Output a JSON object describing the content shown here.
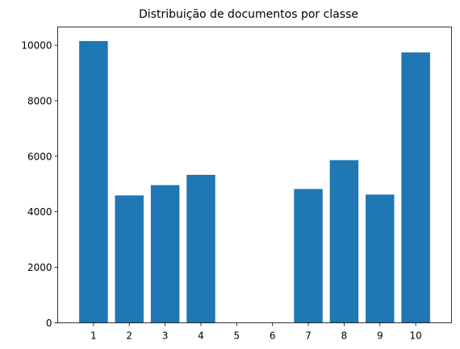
{
  "chart_data": {
    "type": "bar",
    "title": "Distribuição de documentos por classe",
    "xlabel": "",
    "ylabel": "",
    "categories": [
      "1",
      "2",
      "3",
      "4",
      "5",
      "6",
      "7",
      "8",
      "9",
      "10"
    ],
    "values": [
      10150,
      4590,
      4960,
      5330,
      0,
      0,
      4820,
      5860,
      4620,
      9740
    ],
    "ylim": [
      0,
      10656
    ],
    "yticks": [
      0,
      2000,
      4000,
      6000,
      8000,
      10000
    ],
    "bar_color": "#1f77b4",
    "grid": false
  }
}
